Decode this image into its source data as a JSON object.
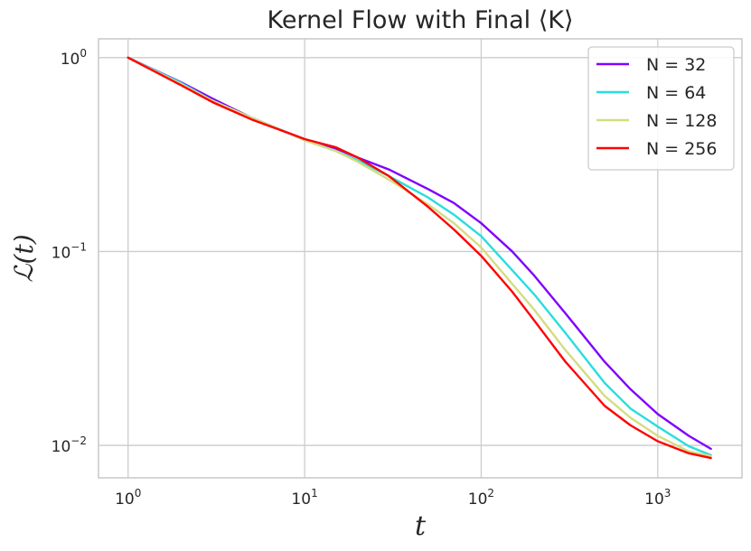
{
  "chart_data": {
    "type": "line",
    "title": "Kernel Flow with Final ⟨K⟩",
    "xlabel": "t",
    "ylabel": "ℒ(t)",
    "xscale": "log",
    "yscale": "log",
    "xlim": [
      0.68,
      3000
    ],
    "ylim": [
      0.0068,
      1.25
    ],
    "x_ticks": [
      {
        "value": 1,
        "base": "10",
        "exp": "0"
      },
      {
        "value": 10,
        "base": "10",
        "exp": "1"
      },
      {
        "value": 100,
        "base": "10",
        "exp": "2"
      },
      {
        "value": 1000,
        "base": "10",
        "exp": "3"
      }
    ],
    "y_ticks": [
      {
        "value": 1,
        "base": "10",
        "exp": "0"
      },
      {
        "value": 0.1,
        "base": "10",
        "exp": "−1"
      },
      {
        "value": 0.01,
        "base": "10",
        "exp": "−2"
      }
    ],
    "grid": true,
    "legend_position": "top-right",
    "series": [
      {
        "name": "N = 32",
        "color": "#8000ff",
        "x": [
          1,
          2,
          3,
          5,
          8,
          10,
          15,
          20,
          30,
          50,
          70,
          100,
          150,
          200,
          300,
          500,
          700,
          1000,
          1500,
          2000
        ],
        "y": [
          1.0,
          0.745,
          0.615,
          0.49,
          0.41,
          0.38,
          0.34,
          0.305,
          0.265,
          0.21,
          0.178,
          0.14,
          0.1,
          0.075,
          0.048,
          0.027,
          0.0195,
          0.0145,
          0.0112,
          0.0096
        ]
      },
      {
        "name": "N = 64",
        "color": "#2adddd",
        "x": [
          1,
          2,
          3,
          5,
          8,
          10,
          15,
          20,
          30,
          50,
          70,
          100,
          150,
          200,
          300,
          500,
          700,
          1000,
          1500,
          2000
        ],
        "y": [
          1.0,
          0.74,
          0.6,
          0.49,
          0.41,
          0.375,
          0.33,
          0.295,
          0.245,
          0.19,
          0.155,
          0.12,
          0.08,
          0.06,
          0.038,
          0.021,
          0.0155,
          0.0125,
          0.0099,
          0.0089
        ]
      },
      {
        "name": "N = 128",
        "color": "#d4dd80",
        "x": [
          1,
          2,
          3,
          5,
          8,
          10,
          15,
          20,
          30,
          50,
          70,
          100,
          150,
          200,
          300,
          500,
          700,
          1000,
          1500,
          2000
        ],
        "y": [
          1.0,
          0.73,
          0.6,
          0.49,
          0.41,
          0.375,
          0.33,
          0.29,
          0.235,
          0.175,
          0.14,
          0.105,
          0.068,
          0.05,
          0.031,
          0.018,
          0.0139,
          0.0112,
          0.0093,
          0.0088
        ]
      },
      {
        "name": "N = 256",
        "color": "#ff0000",
        "x": [
          1,
          2,
          3,
          5,
          8,
          10,
          15,
          20,
          30,
          50,
          70,
          100,
          150,
          200,
          300,
          500,
          700,
          1000,
          1500,
          2000
        ],
        "y": [
          1.0,
          0.72,
          0.59,
          0.48,
          0.41,
          0.38,
          0.345,
          0.305,
          0.245,
          0.17,
          0.13,
          0.095,
          0.062,
          0.044,
          0.027,
          0.016,
          0.0127,
          0.0105,
          0.0091,
          0.0086
        ]
      }
    ]
  }
}
